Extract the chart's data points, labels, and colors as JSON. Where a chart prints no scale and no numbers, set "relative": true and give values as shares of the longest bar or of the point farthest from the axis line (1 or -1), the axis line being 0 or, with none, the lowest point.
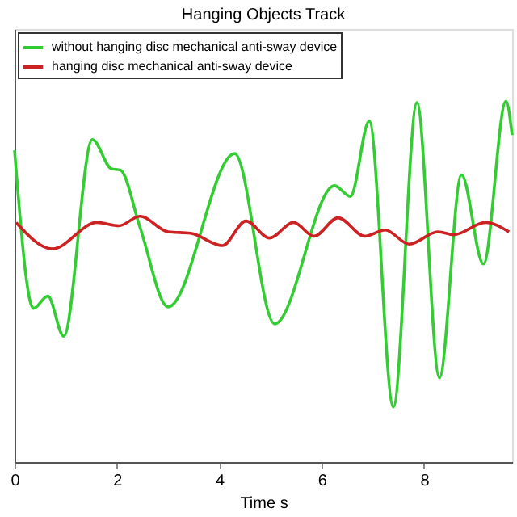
{
  "chart_data": {
    "type": "line",
    "title": "Hanging Objects Track",
    "xlabel": "Time  s",
    "relative": true,
    "xlim": [
      0,
      9.72
    ],
    "xticks": [
      0,
      2,
      4,
      6,
      8
    ],
    "grid": false,
    "legend": "top left",
    "line_style": "solid",
    "marker": "none",
    "series": [
      {
        "name": "without hanging disc mechanical anti-sway device",
        "color": "#33cc33",
        "x": [
          0,
          0.37,
          0.65,
          0.96,
          1.52,
          1.89,
          2.07,
          2.45,
          3.0,
          4.3,
          5.08,
          6.25,
          6.56,
          6.93,
          7.4,
          7.86,
          8.3,
          8.73,
          9.16,
          9.6,
          9.72
        ],
        "values": [
          0.864,
          0.426,
          0.46,
          0.349,
          0.894,
          0.813,
          0.809,
          0.651,
          0.43,
          0.855,
          0.383,
          0.766,
          0.736,
          0.945,
          0.153,
          0.996,
          0.234,
          0.796,
          0.549,
          1.0,
          0.906
        ]
      },
      {
        "name": "hanging disc mechanical anti-sway device",
        "color": "#cc2222",
        "x": [
          0.03,
          0.74,
          1.61,
          2.04,
          2.45,
          3.0,
          3.44,
          4.06,
          4.52,
          4.98,
          5.45,
          5.85,
          6.32,
          6.84,
          7.24,
          7.71,
          8.27,
          8.58,
          9.2,
          9.66
        ],
        "values": [
          0.664,
          0.591,
          0.664,
          0.655,
          0.681,
          0.638,
          0.634,
          0.6,
          0.668,
          0.621,
          0.664,
          0.626,
          0.677,
          0.626,
          0.643,
          0.604,
          0.638,
          0.63,
          0.664,
          0.638
        ]
      }
    ]
  }
}
